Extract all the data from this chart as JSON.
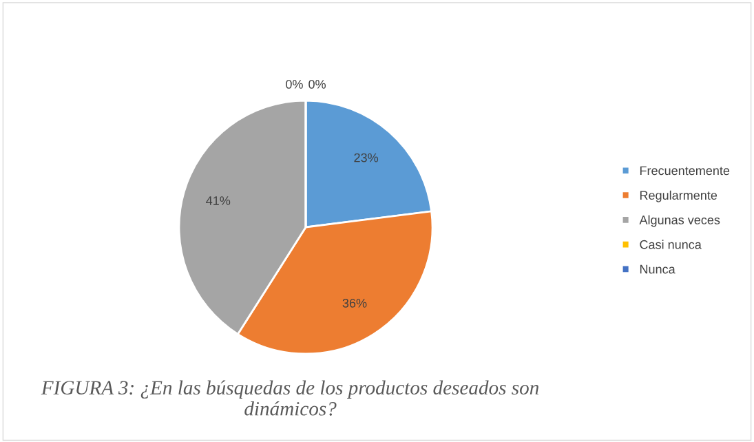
{
  "chart_data": {
    "type": "pie",
    "categories": [
      "Frecuentemente",
      "Regularmente",
      "Algunas veces",
      "Casi nunca",
      "Nunca"
    ],
    "values": [
      23,
      36,
      41,
      0,
      0
    ],
    "colors": [
      "#5b9bd5",
      "#ed7d31",
      "#a5a5a5",
      "#ffc000",
      "#4472c4"
    ],
    "value_labels": [
      "23%",
      "36%",
      "41%",
      "0%",
      "0%"
    ],
    "legend": "right",
    "annotations": [
      "FIGURA 3: ¿En las búsquedas de los productos deseados son dinámicos?"
    ]
  }
}
